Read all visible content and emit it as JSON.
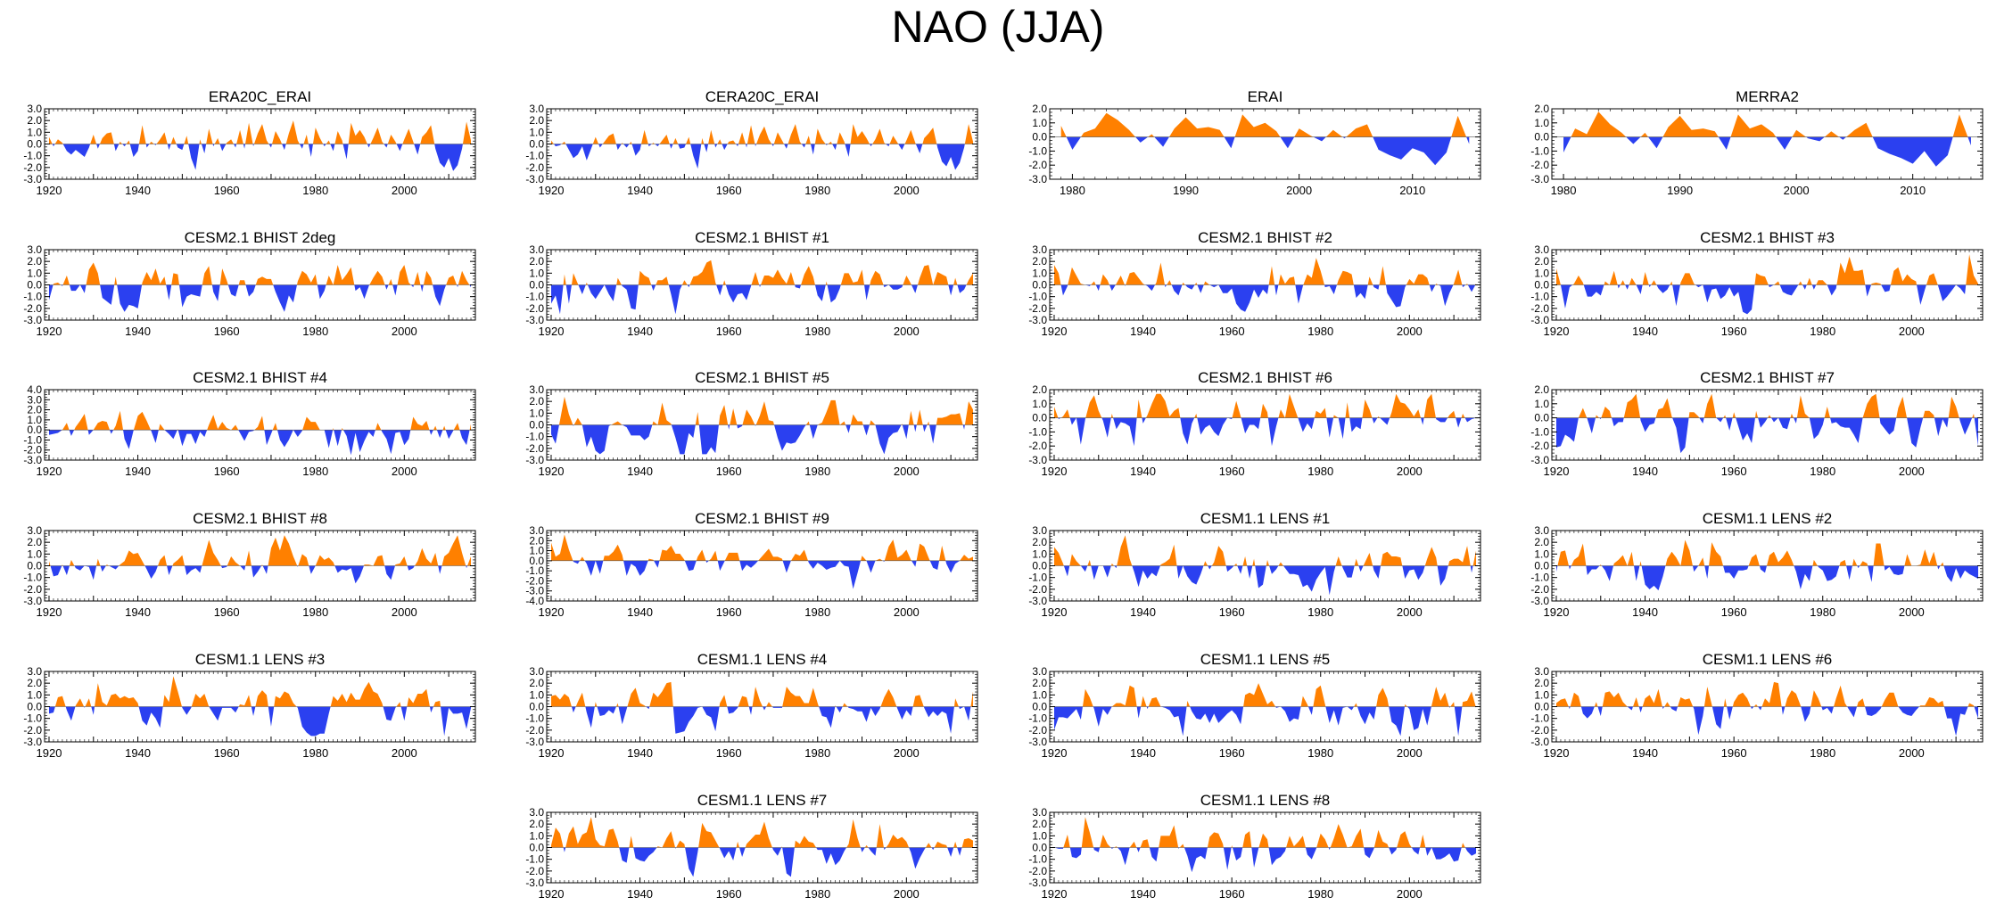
{
  "title": "NAO (JJA)",
  "colors": {
    "positive": "#ff8000",
    "negative": "#2b40f0",
    "axis": "#000000"
  },
  "chart_data": [
    {
      "type": "area",
      "title": "ERA20C_ERAI",
      "xlim": [
        1919,
        2016
      ],
      "ylim": [
        -3.0,
        3.0
      ],
      "yticks": [
        "3.0",
        "2.0",
        "1.0",
        "0.0",
        "-1.0",
        "-2.0",
        "-3.0"
      ],
      "xticks": [
        "1920",
        "1940",
        "1960",
        "1980",
        "2000"
      ],
      "row": 0,
      "col": 0,
      "x_start": 1920,
      "x_end": 2015,
      "seed": 11,
      "amp": 0.9,
      "values": [
        0.6,
        -0.2,
        0.4,
        0.1,
        -0.6,
        -0.9,
        -0.5,
        -0.8,
        -1.1,
        -0.3,
        0.8,
        -0.4,
        0.5,
        0.9,
        1.0,
        -0.6,
        0.2,
        -0.2,
        0.3,
        -1.1,
        -0.6,
        1.6,
        -0.3,
        0.2,
        -0.1,
        0.4,
        1.0,
        -0.5,
        0.6,
        -0.3,
        -0.5,
        0.7,
        -1.2,
        -2.2,
        0.4,
        -0.8,
        1.3,
        -0.2,
        0.5,
        -0.6,
        0.1,
        0.4,
        -0.3,
        1.2,
        -0.4,
        1.8,
        -0.2,
        0.9,
        1.7,
        0.3,
        -0.3,
        1.1,
        0.4,
        -0.5,
        0.9,
        2.0,
        0.3,
        -0.4,
        0.8,
        -1.1,
        1.4,
        0.5,
        -0.2,
        0.3,
        -0.6,
        1.1,
        0.3,
        -1.3,
        1.8,
        0.7,
        1.2,
        0.6,
        -0.3,
        0.5,
        1.4,
        0.2,
        -0.3,
        0.8,
        0.2,
        -0.6,
        0.4,
        1.3,
        0.2,
        -0.9,
        0.6,
        1.0,
        1.6,
        -0.4,
        -1.6,
        -2.0,
        -1.2,
        -2.3,
        -1.8,
        -0.4,
        1.9,
        0.3
      ]
    },
    {
      "type": "area",
      "title": "CERA20C_ERAI",
      "xlim": [
        1919,
        2016
      ],
      "ylim": [
        -3.0,
        3.0
      ],
      "yticks": [
        "3.0",
        "2.0",
        "1.0",
        "0.0",
        "-1.0",
        "-2.0",
        "-3.0"
      ],
      "xticks": [
        "1920",
        "1940",
        "1960",
        "1980",
        "2000"
      ],
      "row": 0,
      "col": 1,
      "x_start": 1920,
      "x_end": 2015,
      "seed": 12,
      "amp": 0.9,
      "values": [
        0.3,
        -0.2,
        -0.1,
        0.2,
        -0.5,
        -1.2,
        -0.9,
        -0.2,
        -1.4,
        -0.4,
        0.6,
        -0.3,
        0.2,
        0.7,
        0.9,
        -0.5,
        0.1,
        -0.3,
        0.2,
        -1.0,
        -0.5,
        1.2,
        -0.2,
        0.1,
        -0.2,
        0.3,
        0.8,
        -0.4,
        0.5,
        -0.4,
        -0.3,
        0.6,
        -1.0,
        -2.1,
        0.5,
        -0.7,
        1.2,
        -0.3,
        0.4,
        -0.5,
        0.2,
        0.3,
        -0.2,
        1.0,
        -0.3,
        1.6,
        -0.2,
        0.8,
        1.5,
        0.4,
        -0.2,
        1.0,
        0.3,
        -0.4,
        0.8,
        1.7,
        0.2,
        -0.3,
        0.7,
        -0.9,
        1.3,
        0.4,
        -0.1,
        0.2,
        -0.5,
        1.0,
        0.2,
        -1.1,
        1.7,
        0.6,
        1.1,
        0.5,
        -0.2,
        0.4,
        1.3,
        0.1,
        -0.2,
        0.7,
        0.1,
        -0.5,
        0.3,
        1.2,
        0.1,
        -0.8,
        0.5,
        0.9,
        1.4,
        -0.3,
        -1.5,
        -1.9,
        -1.1,
        -2.2,
        -1.6,
        -0.3,
        1.7,
        0.2
      ]
    },
    {
      "type": "area",
      "title": "ERAI",
      "xlim": [
        1978,
        2016
      ],
      "ylim": [
        -3.0,
        2.0
      ],
      "yticks": [
        "2.0",
        "1.0",
        "0.0",
        "-1.0",
        "-2.0",
        "-3.0"
      ],
      "xticks": [
        "1980",
        "1990",
        "2000",
        "2010"
      ],
      "row": 0,
      "col": 2,
      "x": [
        1979,
        1980,
        1981,
        1982,
        1983,
        1984,
        1985,
        1986,
        1987,
        1988,
        1989,
        1990,
        1991,
        1992,
        1993,
        1994,
        1995,
        1996,
        1997,
        1998,
        1999,
        2000,
        2001,
        2002,
        2003,
        2004,
        2005,
        2006,
        2007,
        2008,
        2009,
        2010,
        2011,
        2012,
        2013,
        2014,
        2015
      ],
      "values": [
        0.8,
        -0.9,
        0.3,
        0.6,
        1.7,
        1.2,
        0.5,
        -0.4,
        0.2,
        -0.7,
        0.6,
        1.4,
        0.6,
        0.7,
        0.5,
        -0.8,
        1.6,
        0.7,
        1.0,
        0.4,
        -0.8,
        0.6,
        0.1,
        -0.3,
        0.5,
        -0.1,
        0.6,
        0.9,
        -0.9,
        -1.3,
        -1.6,
        -0.8,
        -1.1,
        -2.0,
        -1.1,
        1.5,
        -0.5
      ]
    },
    {
      "type": "area",
      "title": "MERRA2",
      "xlim": [
        1979,
        2016
      ],
      "ylim": [
        -3.0,
        2.0
      ],
      "yticks": [
        "2.0",
        "1.0",
        "0.0",
        "-1.0",
        "-2.0",
        "-3.0"
      ],
      "xticks": [
        "1980",
        "1990",
        "2000",
        "2010"
      ],
      "row": 0,
      "col": 3,
      "x": [
        1980,
        1981,
        1982,
        1983,
        1984,
        1985,
        1986,
        1987,
        1988,
        1989,
        1990,
        1991,
        1992,
        1993,
        1994,
        1995,
        1996,
        1997,
        1998,
        1999,
        2000,
        2001,
        2002,
        2003,
        2004,
        2005,
        2006,
        2007,
        2008,
        2009,
        2010,
        2011,
        2012,
        2013,
        2014,
        2015
      ],
      "values": [
        -1.1,
        0.6,
        0.2,
        1.8,
        0.9,
        0.3,
        -0.5,
        0.3,
        -0.8,
        0.7,
        1.5,
        0.5,
        0.6,
        0.4,
        -0.9,
        1.6,
        0.6,
        0.9,
        0.3,
        -0.9,
        0.5,
        -0.1,
        -0.3,
        0.4,
        -0.2,
        0.5,
        1.0,
        -0.8,
        -1.2,
        -1.5,
        -1.9,
        -1.0,
        -2.1,
        -1.3,
        1.6,
        -0.6
      ]
    },
    {
      "type": "area",
      "title": "CESM2.1 BHIST 2deg",
      "xlim": [
        1919,
        2016
      ],
      "ylim": [
        -3.0,
        3.0
      ],
      "yticks": [
        "3.0",
        "2.0",
        "1.0",
        "0.0",
        "-1.0",
        "-2.0",
        "-3.0"
      ],
      "xticks": [
        "1920",
        "1940",
        "1960",
        "1980",
        "2000"
      ],
      "row": 1,
      "col": 0,
      "x_start": 1920,
      "x_end": 2015,
      "seed": 21,
      "amp": 1.1
    },
    {
      "type": "area",
      "title": "CESM2.1 BHIST #1",
      "xlim": [
        1919,
        2016
      ],
      "ylim": [
        -3.0,
        3.0
      ],
      "yticks": [
        "3.0",
        "2.0",
        "1.0",
        "0.0",
        "-1.0",
        "-2.0",
        "-3.0"
      ],
      "xticks": [
        "1920",
        "1940",
        "1960",
        "1980",
        "2000"
      ],
      "row": 1,
      "col": 1,
      "x_start": 1920,
      "x_end": 2015,
      "seed": 22,
      "amp": 1.1
    },
    {
      "type": "area",
      "title": "CESM2.1 BHIST #2",
      "xlim": [
        1919,
        2016
      ],
      "ylim": [
        -3.0,
        3.0
      ],
      "yticks": [
        "3.0",
        "2.0",
        "1.0",
        "0.0",
        "-1.0",
        "-2.0",
        "-3.0"
      ],
      "xticks": [
        "1920",
        "1940",
        "1960",
        "1980",
        "2000"
      ],
      "row": 1,
      "col": 2,
      "x_start": 1920,
      "x_end": 2015,
      "seed": 23,
      "amp": 1.1
    },
    {
      "type": "area",
      "title": "CESM2.1 BHIST #3",
      "xlim": [
        1919,
        2016
      ],
      "ylim": [
        -3.0,
        3.0
      ],
      "yticks": [
        "3.0",
        "2.0",
        "1.0",
        "0.0",
        "-1.0",
        "-2.0",
        "-3.0"
      ],
      "xticks": [
        "1920",
        "1940",
        "1960",
        "1980",
        "2000"
      ],
      "row": 1,
      "col": 3,
      "x_start": 1920,
      "x_end": 2015,
      "seed": 24,
      "amp": 1.1
    },
    {
      "type": "area",
      "title": "CESM2.1 BHIST #4",
      "xlim": [
        1919,
        2016
      ],
      "ylim": [
        -3.0,
        4.0
      ],
      "yticks": [
        "4.0",
        "3.0",
        "2.0",
        "1.0",
        "0.0",
        "-1.0",
        "-2.0",
        "-3.0"
      ],
      "xticks": [
        "1920",
        "1940",
        "1960",
        "1980",
        "2000"
      ],
      "row": 2,
      "col": 0,
      "x_start": 1920,
      "x_end": 2015,
      "seed": 31,
      "amp": 1.1
    },
    {
      "type": "area",
      "title": "CESM2.1 BHIST #5",
      "xlim": [
        1919,
        2016
      ],
      "ylim": [
        -3.0,
        3.0
      ],
      "yticks": [
        "3.0",
        "2.0",
        "1.0",
        "0.0",
        "-1.0",
        "-2.0",
        "-3.0"
      ],
      "xticks": [
        "1920",
        "1940",
        "1960",
        "1980",
        "2000"
      ],
      "row": 2,
      "col": 1,
      "x_start": 1920,
      "x_end": 2015,
      "seed": 32,
      "amp": 1.2
    },
    {
      "type": "area",
      "title": "CESM2.1 BHIST #6",
      "xlim": [
        1919,
        2016
      ],
      "ylim": [
        -3.0,
        2.0
      ],
      "yticks": [
        "2.0",
        "1.0",
        "0.0",
        "-1.0",
        "-2.0",
        "-3.0"
      ],
      "xticks": [
        "1920",
        "1940",
        "1960",
        "1980",
        "2000"
      ],
      "row": 2,
      "col": 2,
      "x_start": 1920,
      "x_end": 2015,
      "seed": 33,
      "amp": 1.1
    },
    {
      "type": "area",
      "title": "CESM2.1 BHIST #7",
      "xlim": [
        1919,
        2016
      ],
      "ylim": [
        -3.0,
        2.0
      ],
      "yticks": [
        "2.0",
        "1.0",
        "0.0",
        "-1.0",
        "-2.0",
        "-3.0"
      ],
      "xticks": [
        "1920",
        "1940",
        "1960",
        "1980",
        "2000"
      ],
      "row": 2,
      "col": 3,
      "x_start": 1920,
      "x_end": 2015,
      "seed": 34,
      "amp": 1.0
    },
    {
      "type": "area",
      "title": "CESM2.1 BHIST #8",
      "xlim": [
        1919,
        2016
      ],
      "ylim": [
        -3.0,
        3.0
      ],
      "yticks": [
        "3.0",
        "2.0",
        "1.0",
        "0.0",
        "-1.0",
        "-2.0",
        "-3.0"
      ],
      "xticks": [
        "1920",
        "1940",
        "1960",
        "1980",
        "2000"
      ],
      "row": 3,
      "col": 0,
      "x_start": 1920,
      "x_end": 2015,
      "seed": 41,
      "amp": 1.1
    },
    {
      "type": "area",
      "title": "CESM2.1 BHIST #9",
      "xlim": [
        1919,
        2016
      ],
      "ylim": [
        -4.0,
        3.0
      ],
      "yticks": [
        "3.0",
        "2.0",
        "1.0",
        "0.0",
        "-1.0",
        "-2.0",
        "-3.0",
        "-4.0"
      ],
      "xticks": [
        "1920",
        "1940",
        "1960",
        "1980",
        "2000"
      ],
      "row": 3,
      "col": 1,
      "x_start": 1920,
      "x_end": 2015,
      "seed": 42,
      "amp": 1.1
    },
    {
      "type": "area",
      "title": "CESM1.1 LENS #1",
      "xlim": [
        1919,
        2016
      ],
      "ylim": [
        -3.0,
        3.0
      ],
      "yticks": [
        "3.0",
        "2.0",
        "1.0",
        "0.0",
        "-1.0",
        "-2.0",
        "-3.0"
      ],
      "xticks": [
        "1920",
        "1940",
        "1960",
        "1980",
        "2000"
      ],
      "row": 3,
      "col": 2,
      "x_start": 1920,
      "x_end": 2015,
      "seed": 43,
      "amp": 1.1
    },
    {
      "type": "area",
      "title": "CESM1.1 LENS #2",
      "xlim": [
        1919,
        2016
      ],
      "ylim": [
        -3.0,
        3.0
      ],
      "yticks": [
        "3.0",
        "2.0",
        "1.0",
        "0.0",
        "-1.0",
        "-2.0",
        "-3.0"
      ],
      "xticks": [
        "1920",
        "1940",
        "1960",
        "1980",
        "2000"
      ],
      "row": 3,
      "col": 3,
      "x_start": 1920,
      "x_end": 2015,
      "seed": 44,
      "amp": 1.1
    },
    {
      "type": "area",
      "title": "CESM1.1 LENS #3",
      "xlim": [
        1919,
        2016
      ],
      "ylim": [
        -3.0,
        3.0
      ],
      "yticks": [
        "3.0",
        "2.0",
        "1.0",
        "0.0",
        "-1.0",
        "-2.0",
        "-3.0"
      ],
      "xticks": [
        "1920",
        "1940",
        "1960",
        "1980",
        "2000"
      ],
      "row": 4,
      "col": 0,
      "x_start": 1920,
      "x_end": 2015,
      "seed": 51,
      "amp": 1.1
    },
    {
      "type": "area",
      "title": "CESM1.1 LENS #4",
      "xlim": [
        1919,
        2016
      ],
      "ylim": [
        -3.0,
        3.0
      ],
      "yticks": [
        "3.0",
        "2.0",
        "1.0",
        "0.0",
        "-1.0",
        "-2.0",
        "-3.0"
      ],
      "xticks": [
        "1920",
        "1940",
        "1960",
        "1980",
        "2000"
      ],
      "row": 4,
      "col": 1,
      "x_start": 1920,
      "x_end": 2015,
      "seed": 52,
      "amp": 1.1
    },
    {
      "type": "area",
      "title": "CESM1.1 LENS #5",
      "xlim": [
        1919,
        2016
      ],
      "ylim": [
        -3.0,
        3.0
      ],
      "yticks": [
        "3.0",
        "2.0",
        "1.0",
        "0.0",
        "-1.0",
        "-2.0",
        "-3.0"
      ],
      "xticks": [
        "1920",
        "1940",
        "1960",
        "1980",
        "2000"
      ],
      "row": 4,
      "col": 2,
      "x_start": 1920,
      "x_end": 2015,
      "seed": 53,
      "amp": 1.1
    },
    {
      "type": "area",
      "title": "CESM1.1 LENS #6",
      "xlim": [
        1919,
        2016
      ],
      "ylim": [
        -3.0,
        3.0
      ],
      "yticks": [
        "3.0",
        "2.0",
        "1.0",
        "0.0",
        "-1.0",
        "-2.0",
        "-3.0"
      ],
      "xticks": [
        "1920",
        "1940",
        "1960",
        "1980",
        "2000"
      ],
      "row": 4,
      "col": 3,
      "x_start": 1920,
      "x_end": 2015,
      "seed": 54,
      "amp": 1.0
    },
    {
      "type": "area",
      "title": "CESM1.1 LENS #7",
      "xlim": [
        1919,
        2016
      ],
      "ylim": [
        -3.0,
        3.0
      ],
      "yticks": [
        "3.0",
        "2.0",
        "1.0",
        "0.0",
        "-1.0",
        "-2.0",
        "-3.0"
      ],
      "xticks": [
        "1920",
        "1940",
        "1960",
        "1980",
        "2000"
      ],
      "row": 5,
      "col": 1,
      "x_start": 1920,
      "x_end": 2015,
      "seed": 61,
      "amp": 1.1
    },
    {
      "type": "area",
      "title": "CESM1.1 LENS #8",
      "xlim": [
        1919,
        2016
      ],
      "ylim": [
        -3.0,
        3.0
      ],
      "yticks": [
        "3.0",
        "2.0",
        "1.0",
        "0.0",
        "-1.0",
        "-2.0",
        "-3.0"
      ],
      "xticks": [
        "1920",
        "1940",
        "1960",
        "1980",
        "2000"
      ],
      "row": 5,
      "col": 2,
      "x_start": 1920,
      "x_end": 2015,
      "seed": 62,
      "amp": 1.1
    }
  ]
}
